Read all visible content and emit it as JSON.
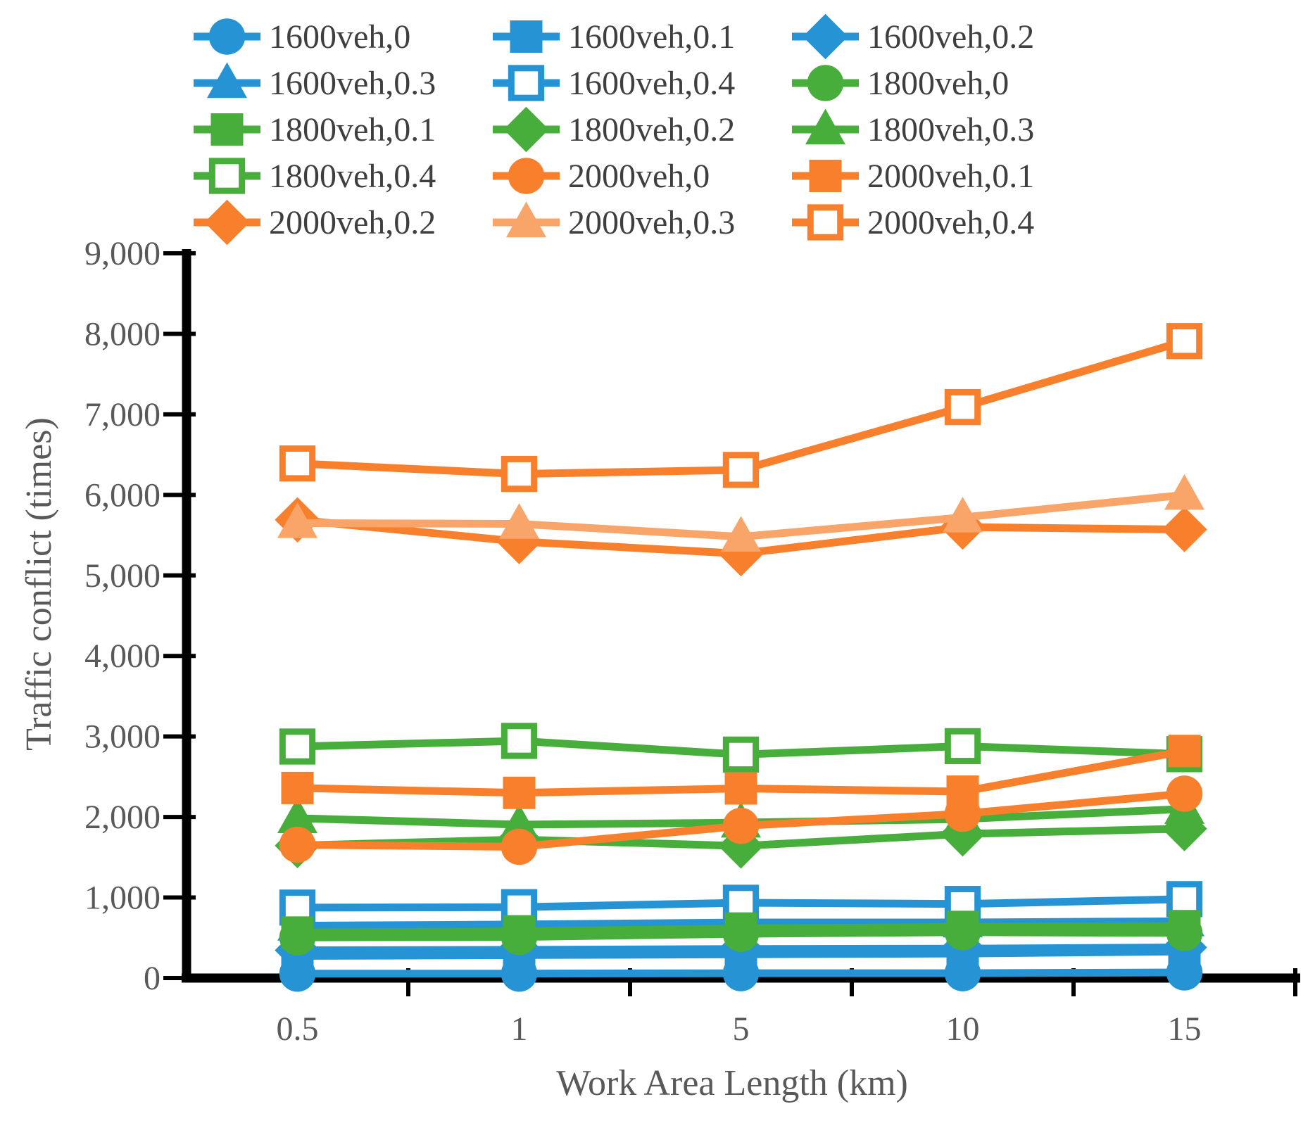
{
  "figure_title": "Traffic conflict vs work area length line chart",
  "colors": {
    "blue": "#2694d4",
    "green": "#47ae3b",
    "orange": "#f8802d",
    "light_orange": "#f9a469",
    "axis_line": "#000000",
    "axis_text": "#595959",
    "legend_text": "#3f3f3f",
    "open_marker_fill": "#ffffff"
  },
  "chart_data": {
    "type": "line",
    "title": "",
    "xlabel": "Work Area Length (km)",
    "ylabel": "Traffic conflict (times)",
    "x_categories": [
      "0.5",
      "1",
      "5",
      "10",
      "15"
    ],
    "ylim": [
      0,
      9000
    ],
    "y_tick_step": 1000,
    "y_tick_labels": [
      "0",
      "1,000",
      "2,000",
      "3,000",
      "4,000",
      "5,000",
      "6,000",
      "7,000",
      "8,000",
      "9,000"
    ],
    "grid": false,
    "legend_position": "top",
    "legend_columns": 3,
    "series": [
      {
        "label": "1600veh,0",
        "color": "blue",
        "marker": "circle",
        "fill": "solid",
        "values": [
          55,
          55,
          60,
          60,
          70
        ]
      },
      {
        "label": "1600veh,0.1",
        "color": "blue",
        "marker": "square",
        "fill": "solid",
        "values": [
          275,
          285,
          295,
          305,
          330
        ]
      },
      {
        "label": "1600veh,0.2",
        "color": "blue",
        "marker": "diamond",
        "fill": "solid",
        "values": [
          345,
          350,
          360,
          365,
          380
        ]
      },
      {
        "label": "1600veh,0.3",
        "color": "blue",
        "marker": "triangle",
        "fill": "solid",
        "values": [
          650,
          665,
          690,
          690,
          705
        ]
      },
      {
        "label": "1600veh,0.4",
        "color": "blue",
        "marker": "square",
        "fill": "open",
        "values": [
          875,
          880,
          935,
          920,
          980
        ]
      },
      {
        "label": "1800veh,0",
        "color": "green",
        "marker": "circle",
        "fill": "solid",
        "values": [
          505,
          510,
          550,
          570,
          560
        ]
      },
      {
        "label": "1800veh,0.1",
        "color": "green",
        "marker": "square",
        "fill": "solid",
        "values": [
          565,
          580,
          615,
          635,
          645
        ]
      },
      {
        "label": "1800veh,0.2",
        "color": "green",
        "marker": "diamond",
        "fill": "solid",
        "values": [
          1645,
          1720,
          1640,
          1790,
          1855
        ]
      },
      {
        "label": "1800veh,0.3",
        "color": "green",
        "marker": "triangle",
        "fill": "solid",
        "values": [
          1985,
          1905,
          1930,
          1975,
          2100
        ]
      },
      {
        "label": "1800veh,0.4",
        "color": "green",
        "marker": "square",
        "fill": "open",
        "values": [
          2875,
          2945,
          2775,
          2880,
          2780
        ]
      },
      {
        "label": "2000veh,0",
        "color": "orange",
        "marker": "circle",
        "fill": "solid",
        "values": [
          1655,
          1630,
          1890,
          2040,
          2290
        ]
      },
      {
        "label": "2000veh,0.1",
        "color": "orange",
        "marker": "square",
        "fill": "solid",
        "values": [
          2360,
          2300,
          2355,
          2315,
          2820
        ]
      },
      {
        "label": "2000veh,0.2",
        "color": "orange",
        "marker": "diamond",
        "fill": "solid",
        "values": [
          5690,
          5420,
          5270,
          5600,
          5570
        ]
      },
      {
        "label": "2000veh,0.3",
        "color": "light_orange",
        "marker": "triangle",
        "fill": "solid",
        "values": [
          5650,
          5640,
          5480,
          5720,
          6000
        ]
      },
      {
        "label": "2000veh,0.4",
        "color": "orange",
        "marker": "square",
        "fill": "open",
        "values": [
          6390,
          6260,
          6310,
          7090,
          7910
        ]
      }
    ]
  }
}
